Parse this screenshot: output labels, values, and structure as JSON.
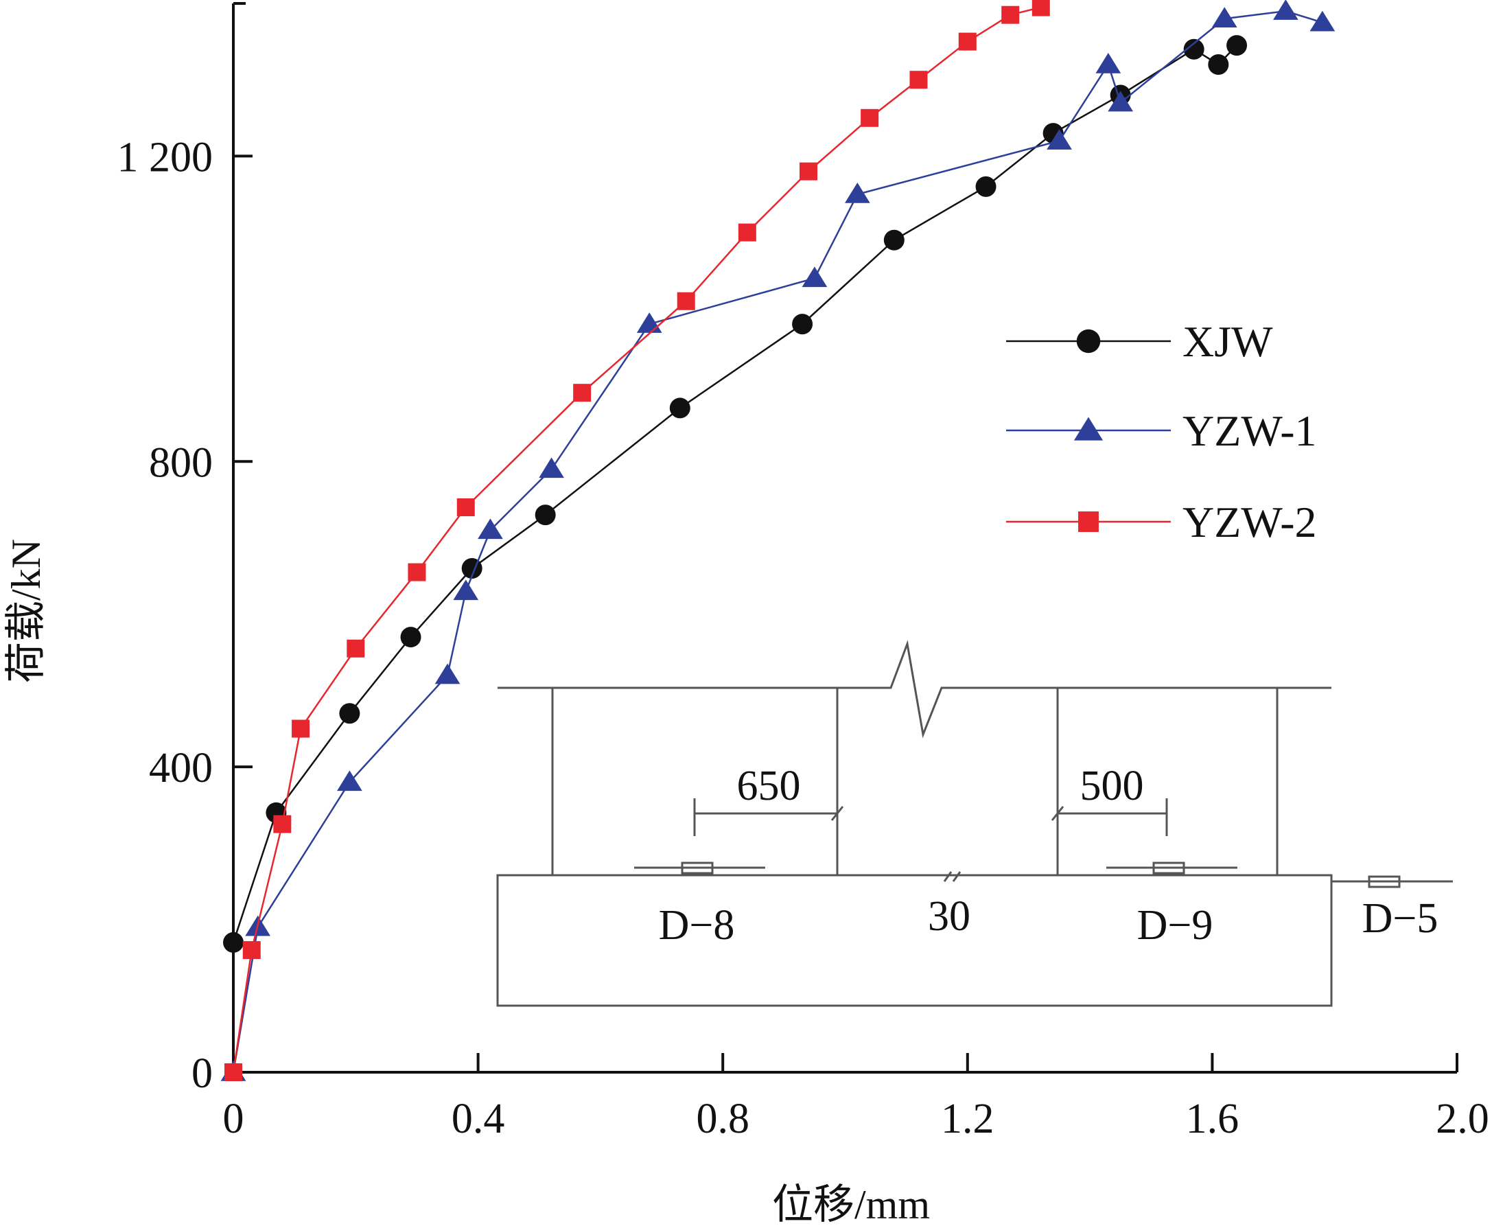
{
  "chart_data": {
    "type": "line",
    "title": "",
    "xlabel": "位移/mm",
    "ylabel": "荷载/kN",
    "xlim": [
      0,
      2.0
    ],
    "ylim": [
      0,
      1400
    ],
    "xticks": [
      0,
      0.4,
      0.8,
      1.2,
      1.6,
      2.0
    ],
    "xtick_labels": [
      "0",
      "0.4",
      "0.8",
      "1.2",
      "1.6",
      "2.0"
    ],
    "yticks": [
      0,
      400,
      800,
      1200
    ],
    "ytick_labels": [
      "0",
      "400",
      "800",
      "1 200"
    ],
    "grid": false,
    "legend_position": "right",
    "series": [
      {
        "name": "XJW",
        "color": "#111111",
        "marker": "circle",
        "x": [
          0.0,
          0.07,
          0.19,
          0.29,
          0.39,
          0.51,
          0.73,
          0.93,
          1.08,
          1.23,
          1.34,
          1.45,
          1.57,
          1.61,
          1.64
        ],
        "y": [
          170,
          340,
          470,
          570,
          660,
          730,
          870,
          980,
          1090,
          1160,
          1230,
          1280,
          1340,
          1320,
          1345
        ]
      },
      {
        "name": "YZW-1",
        "color": "#2e3f9a",
        "marker": "triangle",
        "x": [
          0.0,
          0.04,
          0.19,
          0.35,
          0.38,
          0.42,
          0.52,
          0.68,
          0.95,
          1.02,
          1.35,
          1.43,
          1.45,
          1.62,
          1.72,
          1.78
        ],
        "y": [
          0,
          190,
          380,
          520,
          630,
          710,
          790,
          980,
          1040,
          1150,
          1220,
          1320,
          1270,
          1380,
          1390,
          1375
        ]
      },
      {
        "name": "YZW-2",
        "color": "#e8262d",
        "marker": "square",
        "x": [
          0.0,
          0.03,
          0.08,
          0.11,
          0.2,
          0.3,
          0.38,
          0.57,
          0.74,
          0.84,
          0.94,
          1.04,
          1.12,
          1.2,
          1.27,
          1.32
        ],
        "y": [
          0,
          160,
          325,
          450,
          555,
          655,
          740,
          890,
          1010,
          1100,
          1180,
          1250,
          1300,
          1350,
          1385,
          1395
        ]
      }
    ],
    "inset_labels": {
      "dim_650": "650",
      "dim_500": "500",
      "dim_30": "30",
      "sensor_d8": "D−8",
      "sensor_d9": "D−9",
      "sensor_d5": "D−5"
    }
  }
}
